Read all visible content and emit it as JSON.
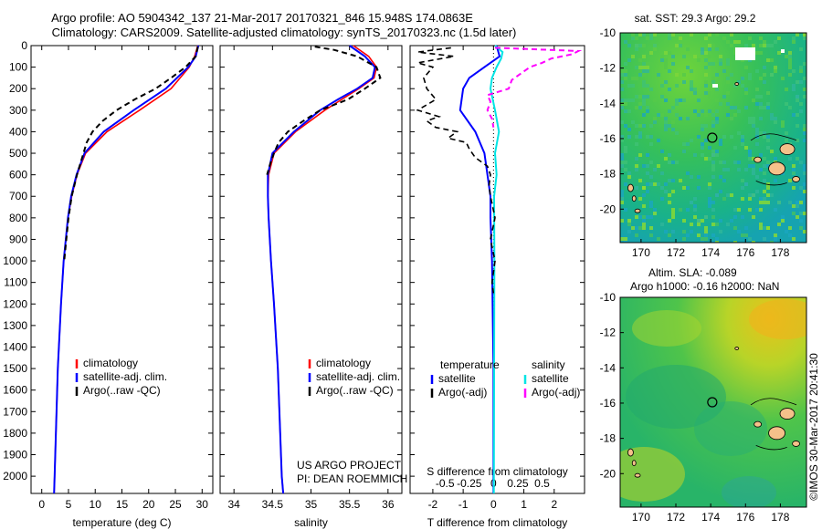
{
  "header": {
    "line1": "Argo profile: AO 5904342_137 21-Mar-2017 20170321_846 15.948S 174.0863E",
    "line2": "Climatology: CARS2009. Satellite-adjusted climatology: synTS_20170323.nc (1.5d later)"
  },
  "side_text": {
    "sst": "sat. SST: 29.3 Argo: 29.2",
    "sla1": "Altim. SLA: -0.089",
    "sla2": "Argo h1000: -0.16 h2000: NaN",
    "stamp": "©IMOS 30-Mar-2017 20:41:30",
    "project1": "US ARGO PROJECT",
    "project2": "PI: DEAN ROEMMICH"
  },
  "colors": {
    "climatology": "#ff0000",
    "satellite": "#0000ff",
    "argo": "#000000",
    "sal_satellite": "#00e5e5",
    "sal_argo": "#ff00ff",
    "coast": "#f5c18a"
  },
  "chart_data": [
    {
      "type": "line",
      "xlabel": "temperature (deg C)",
      "xticks": [
        0,
        5,
        10,
        15,
        20,
        25,
        30
      ],
      "xlim": [
        -2,
        32
      ],
      "ylim": [
        2080,
        0
      ],
      "yticks": [
        0,
        100,
        200,
        300,
        400,
        500,
        600,
        700,
        800,
        900,
        1000,
        1100,
        1200,
        1300,
        1400,
        1500,
        1600,
        1700,
        1800,
        1900,
        2000
      ],
      "legend": [
        "climatology",
        "satellite-adj. clim.",
        "Argo(..raw -QC)"
      ],
      "series": [
        {
          "name": "climatology",
          "depth": [
            0,
            50,
            100,
            200,
            300,
            400,
            500,
            600,
            700,
            800,
            1000,
            1200,
            1500,
            2000,
            2080
          ],
          "values": [
            29.2,
            28.6,
            27.6,
            24.2,
            18.3,
            12.2,
            8.2,
            6.6,
            5.6,
            4.9,
            4.1,
            3.6,
            3.0,
            2.4,
            2.3
          ]
        },
        {
          "name": "satellite-adj. clim.",
          "depth": [
            0,
            50,
            100,
            200,
            300,
            400,
            500,
            600,
            700,
            800,
            1000,
            1200,
            1500,
            2000,
            2080
          ],
          "values": [
            29.3,
            28.8,
            27.4,
            23.2,
            17.2,
            11.6,
            8.0,
            6.5,
            5.5,
            4.9,
            4.1,
            3.6,
            3.0,
            2.4,
            2.3
          ]
        },
        {
          "name": "Argo(..raw -QC)",
          "depth": [
            5,
            50,
            100,
            150,
            200,
            250,
            300,
            350,
            400,
            450,
            500,
            600,
            700,
            800,
            900,
            1000
          ],
          "values": [
            29.2,
            28.8,
            26.9,
            24.2,
            21.3,
            17.4,
            14.0,
            11.4,
            9.5,
            8.4,
            7.8,
            6.6,
            5.6,
            5.0,
            4.6,
            4.2
          ]
        }
      ]
    },
    {
      "type": "line",
      "xlabel": "salinity",
      "xticks": [
        34,
        34.5,
        35,
        35.5,
        36
      ],
      "xlim": [
        33.82,
        36.18
      ],
      "ylim": [
        2080,
        0
      ],
      "legend": [
        "climatology",
        "satellite-adj. clim.",
        "Argo(..raw -QC)"
      ],
      "series": [
        {
          "name": "climatology",
          "depth": [
            0,
            50,
            100,
            150,
            200,
            250,
            300,
            400,
            500,
            600,
            700,
            800,
            1000,
            1200,
            1500,
            2000,
            2080
          ],
          "values": [
            35.55,
            35.75,
            35.85,
            35.82,
            35.62,
            35.4,
            35.18,
            34.8,
            34.52,
            34.45,
            34.44,
            34.45,
            34.48,
            34.52,
            34.57,
            34.62,
            34.64
          ]
        },
        {
          "name": "satellite-adj. clim.",
          "depth": [
            0,
            50,
            100,
            150,
            200,
            250,
            300,
            400,
            500,
            600,
            700,
            800,
            1000,
            1200,
            1500,
            2000,
            2080
          ],
          "values": [
            35.5,
            35.7,
            35.83,
            35.8,
            35.6,
            35.35,
            35.12,
            34.78,
            34.5,
            34.44,
            34.44,
            34.45,
            34.48,
            34.52,
            34.57,
            34.62,
            34.64
          ]
        },
        {
          "name": "Argo(..raw -QC)",
          "depth": [
            5,
            20,
            50,
            100,
            150,
            200,
            250,
            300,
            350,
            400,
            450,
            500,
            550,
            600
          ],
          "values": [
            35.05,
            35.3,
            35.6,
            35.85,
            35.9,
            35.7,
            35.48,
            35.12,
            34.9,
            34.7,
            34.58,
            34.52,
            34.47,
            34.43
          ]
        }
      ]
    },
    {
      "type": "line",
      "xlabel": "T difference from climatology",
      "xlabel_top": "S difference from climatology",
      "xticks": [
        -2,
        -1,
        0,
        1,
        2
      ],
      "xticks_top": [
        -0.5,
        -0.25,
        0,
        0.25,
        0.5
      ],
      "xlim": [
        -2.75,
        3.0
      ],
      "ylim": [
        2080,
        0
      ],
      "legend_temperature": [
        "temperature",
        "satellite",
        "Argo(-adj)"
      ],
      "legend_salinity": [
        "salinity",
        "satellite",
        "Argo(-adj)"
      ],
      "series": [
        {
          "name": "T satellite",
          "depth": [
            0,
            50,
            100,
            150,
            200,
            300,
            400,
            500,
            600,
            700,
            800,
            1000,
            1500,
            2080
          ],
          "values": [
            0.1,
            0.2,
            -0.3,
            -0.8,
            -1.0,
            -1.1,
            -0.6,
            -0.3,
            -0.2,
            -0.1,
            -0.1,
            -0.05,
            0,
            0
          ]
        },
        {
          "name": "S satellite",
          "depth": [
            0,
            30,
            60,
            100,
            150,
            200,
            300,
            400,
            500,
            600,
            700,
            1000,
            1500,
            2080
          ],
          "values": [
            0.05,
            0.3,
            0.25,
            0.1,
            -0.05,
            -0.1,
            0.05,
            0.18,
            0.05,
            0.1,
            0.02,
            0.03,
            0.02,
            0.01
          ]
        },
        {
          "name": "T Argo(-adj)",
          "depth": [
            10,
            30,
            50,
            80,
            100,
            150,
            200,
            250,
            300,
            330,
            350,
            380,
            400,
            430,
            450,
            480,
            520,
            560,
            600,
            650,
            700,
            800,
            900,
            1000,
            1100,
            1150
          ],
          "values": [
            -1.4,
            -2.5,
            -1.3,
            -2.5,
            -2.0,
            -2.3,
            -2.2,
            -1.9,
            -2.5,
            -1.8,
            -2.2,
            -1.9,
            -1.2,
            -1.5,
            -0.9,
            -0.8,
            -0.6,
            -0.2,
            -0.1,
            -0.15,
            -0.1,
            0.05,
            -0.1,
            0.05,
            -0.05,
            0
          ]
        },
        {
          "name": "S Argo(-adj)",
          "depth": [
            10,
            25,
            40,
            60,
            80,
            100,
            130,
            160,
            200,
            230,
            260,
            300,
            340,
            380
          ],
          "values": [
            0.05,
            2.8,
            2.6,
            1.9,
            1.6,
            1.2,
            0.9,
            0.6,
            0.5,
            -0.2,
            -0.1,
            -0.2,
            -0.05,
            0
          ]
        }
      ]
    },
    {
      "type": "heatmap",
      "title": "sat. SST: 29.3 Argo: 29.2",
      "xticks": [
        170,
        172,
        174,
        176,
        178
      ],
      "yticks": [
        -10,
        -12,
        -14,
        -16,
        -18,
        -20
      ],
      "xlim": [
        168.8,
        179.5
      ],
      "ylim": [
        -21.9,
        -10
      ],
      "marker": {
        "lon": 174.09,
        "lat": -15.95
      }
    },
    {
      "type": "heatmap",
      "title": "Altim. SLA: -0.089",
      "xticks": [
        170,
        172,
        174,
        176,
        178
      ],
      "yticks": [
        -10,
        -12,
        -14,
        -16,
        -18,
        -20
      ],
      "xlim": [
        168.8,
        179.5
      ],
      "ylim": [
        -21.9,
        -10
      ],
      "marker": {
        "lon": 174.09,
        "lat": -15.95
      }
    }
  ]
}
